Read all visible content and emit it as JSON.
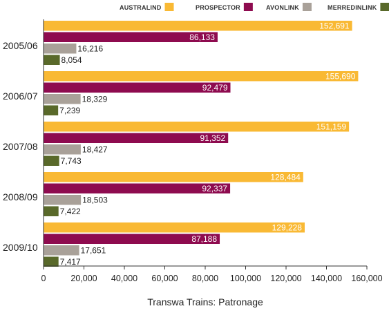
{
  "chart_data": {
    "type": "bar",
    "orientation": "horizontal",
    "title": "",
    "xlabel": "Transwa Trains: Patronage",
    "ylabel": "",
    "xlim": [
      0,
      160000
    ],
    "x_ticks": [
      "0",
      "20,000",
      "40,000",
      "60,000",
      "80,000",
      "100,000",
      "120,000",
      "140,000",
      "160,000"
    ],
    "grid": false,
    "legend_position": "top-right",
    "categories": [
      "2005/06",
      "2006/07",
      "2007/08",
      "2008/09",
      "2009/10"
    ],
    "series": [
      {
        "name": "AUSTRALIND",
        "color": "#f9b934",
        "values": [
          152691,
          155690,
          151159,
          128484,
          129228
        ],
        "labels": [
          "152,691",
          "155,690",
          "151,159",
          "128,484",
          "129,228"
        ]
      },
      {
        "name": "PROSPECTOR",
        "color": "#8e0b4f",
        "values": [
          86133,
          92479,
          91352,
          92337,
          87188
        ],
        "labels": [
          "86,133",
          "92,479",
          "91,352",
          "92,337",
          "87,188"
        ]
      },
      {
        "name": "AVONLINK",
        "color": "#a9a199",
        "values": [
          16216,
          18329,
          18427,
          18503,
          17651
        ],
        "labels": [
          "16,216",
          "18,329",
          "18,427",
          "18,503",
          "17,651"
        ]
      },
      {
        "name": "MERREDINLINK",
        "color": "#59692a",
        "values": [
          8054,
          7239,
          7743,
          7422,
          7417
        ],
        "labels": [
          "8,054",
          "7,239",
          "7,743",
          "7,422",
          "7,417"
        ]
      }
    ]
  }
}
